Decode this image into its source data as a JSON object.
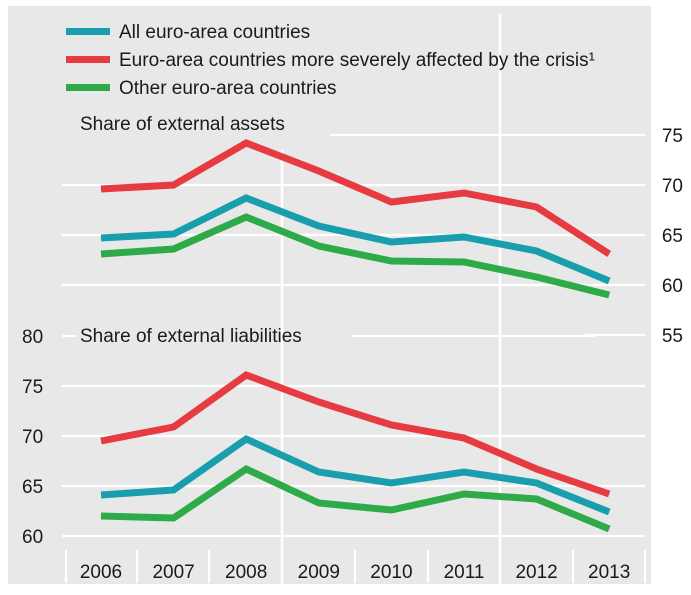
{
  "chart_data": [
    {
      "type": "line",
      "title": "Share of external assets",
      "x": [
        "2006",
        "2007",
        "2008",
        "2009",
        "2010",
        "2011",
        "2012",
        "2013"
      ],
      "ylim": [
        55,
        75
      ],
      "yticks": [
        55,
        60,
        65,
        70,
        75
      ],
      "yaxis_side": "right",
      "series": [
        {
          "name": "All euro-area countries",
          "color": "#199ead",
          "values": [
            64.7,
            65.1,
            68.7,
            65.9,
            64.3,
            64.8,
            63.4,
            60.4
          ]
        },
        {
          "name": "Euro-area countries more severely affected by the crisis¹",
          "color": "#e63c41",
          "values": [
            69.6,
            70.0,
            74.2,
            71.4,
            68.3,
            69.2,
            67.8,
            63.1
          ]
        },
        {
          "name": "Other euro-area countries",
          "color": "#2eab48",
          "values": [
            63.1,
            63.6,
            66.8,
            63.9,
            62.4,
            62.3,
            60.8,
            59.0
          ]
        }
      ]
    },
    {
      "type": "line",
      "title": "Share of external liabilities",
      "x": [
        "2006",
        "2007",
        "2008",
        "2009",
        "2010",
        "2011",
        "2012",
        "2013"
      ],
      "ylim": [
        60,
        80
      ],
      "yticks": [
        60,
        65,
        70,
        75,
        80
      ],
      "yaxis_side": "left",
      "series": [
        {
          "name": "All euro-area countries",
          "color": "#199ead",
          "values": [
            64.1,
            64.6,
            69.7,
            66.4,
            65.3,
            66.4,
            65.3,
            62.4
          ]
        },
        {
          "name": "Euro-area countries more severely affected by the crisis¹",
          "color": "#e63c41",
          "values": [
            69.5,
            70.9,
            76.1,
            73.4,
            71.1,
            69.8,
            66.7,
            64.2
          ]
        },
        {
          "name": "Other euro-area countries",
          "color": "#2eab48",
          "values": [
            62.0,
            61.8,
            66.7,
            63.3,
            62.6,
            64.2,
            63.7,
            60.7
          ]
        }
      ]
    }
  ],
  "legend": [
    {
      "label": "All euro-area countries",
      "color": "#199ead"
    },
    {
      "label": "Euro-area countries more severely affected by the crisis¹",
      "color": "#e63c41"
    },
    {
      "label": "Other euro-area countries",
      "color": "#2eab48"
    }
  ],
  "background_color": "#e8e8e8",
  "grid": true
}
